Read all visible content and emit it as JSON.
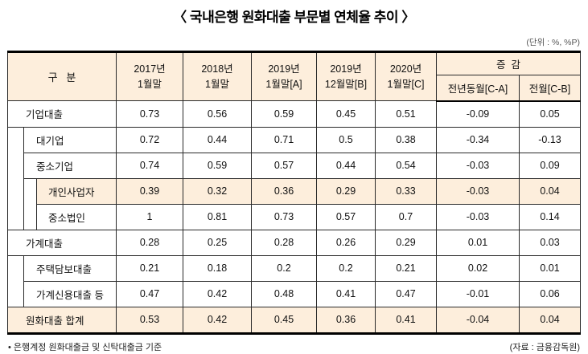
{
  "title": "〈 국내은행 원화대출 부문별 연체율 추이 〉",
  "unit_note": "(단위 : %, %P)",
  "table": {
    "header": {
      "category": "구   분",
      "years": [
        "2017년\n1월말",
        "2018년\n1월말",
        "2019년\n1월말[A]",
        "2019년\n12월말[B]",
        "2020년\n1월말[C]"
      ],
      "change_group": "증  감",
      "change_cols": [
        "전년동월[C-A]",
        "전월[C-B]"
      ]
    },
    "rows": [
      {
        "label": "기업대출",
        "level": 0,
        "highlight": false,
        "values": [
          "0.73",
          "0.56",
          "0.59",
          "0.45",
          "0.51",
          "-0.09",
          "0.05"
        ]
      },
      {
        "label": "대기업",
        "level": 1,
        "highlight": false,
        "values": [
          "0.72",
          "0.44",
          "0.71",
          "0.5",
          "0.38",
          "-0.34",
          "-0.13"
        ]
      },
      {
        "label": "중소기업",
        "level": 1,
        "highlight": false,
        "values": [
          "0.74",
          "0.59",
          "0.57",
          "0.44",
          "0.54",
          "-0.03",
          "0.09"
        ]
      },
      {
        "label": "개인사업자",
        "level": 2,
        "highlight": true,
        "values": [
          "0.39",
          "0.32",
          "0.36",
          "0.29",
          "0.33",
          "-0.03",
          "0.04"
        ]
      },
      {
        "label": "중소법인",
        "level": 2,
        "highlight": false,
        "values": [
          "1",
          "0.81",
          "0.73",
          "0.57",
          "0.7",
          "-0.03",
          "0.14"
        ]
      },
      {
        "label": "가계대출",
        "level": 0,
        "highlight": false,
        "values": [
          "0.28",
          "0.25",
          "0.28",
          "0.26",
          "0.29",
          "0.01",
          "0.03"
        ]
      },
      {
        "label": "주택담보대출",
        "level": 1,
        "highlight": false,
        "values": [
          "0.21",
          "0.18",
          "0.2",
          "0.2",
          "0.21",
          "0.02",
          "0.01"
        ]
      },
      {
        "label": "가계신용대출 등",
        "level": 1,
        "highlight": false,
        "values": [
          "0.47",
          "0.42",
          "0.48",
          "0.41",
          "0.47",
          "-0.01",
          "0.06"
        ]
      },
      {
        "label": "원화대출 합계",
        "level": 0,
        "highlight": true,
        "values": [
          "0.53",
          "0.42",
          "0.45",
          "0.36",
          "0.41",
          "-0.04",
          "0.04"
        ]
      }
    ]
  },
  "footnote": "• 은행계정 원화대출금 및 신탁대출금 기준",
  "source": "(자료 : 금융감독원)",
  "colors": {
    "highlight_bg": "#fdeedc",
    "border": "#2a2a2a",
    "thick_border": "#000000"
  }
}
